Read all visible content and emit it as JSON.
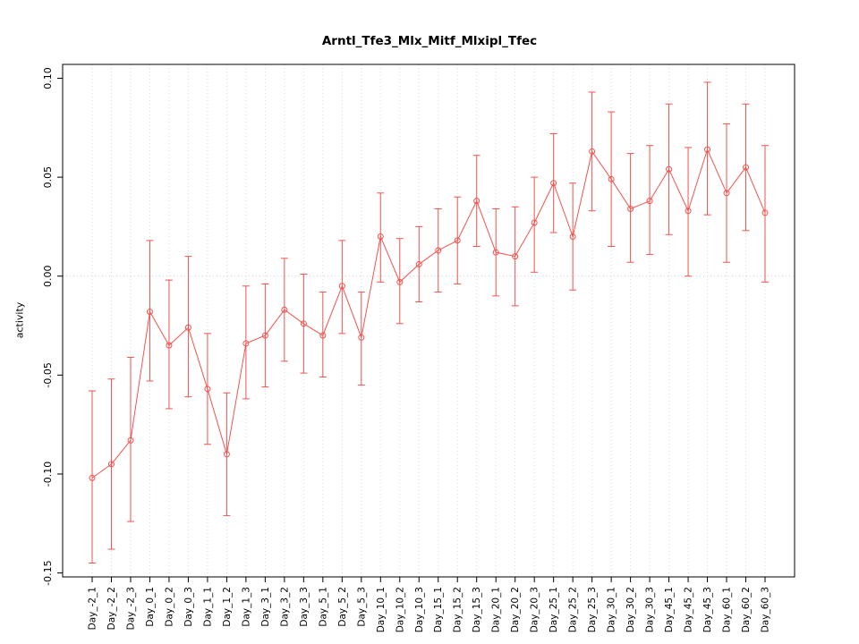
{
  "chart_data": {
    "type": "line",
    "title": "Arntl_Tfe3_Mlx_Mitf_Mlxipl_Tfec",
    "xlabel": "",
    "ylabel": "activity",
    "legend": "none",
    "grid": "dotted vertical gridlines at each category; dotted horizontal reference line at 0",
    "categories": [
      "Day_-2_1",
      "Day_-2_2",
      "Day_-2_3",
      "Day_0_1",
      "Day_0_2",
      "Day_0_3",
      "Day_1_1",
      "Day_1_2",
      "Day_1_3",
      "Day_3_1",
      "Day_3_2",
      "Day_3_3",
      "Day_5_1",
      "Day_5_2",
      "Day_5_3",
      "Day_10_1",
      "Day_10_2",
      "Day_10_3",
      "Day_15_1",
      "Day_15_2",
      "Day_15_3",
      "Day_20_1",
      "Day_20_2",
      "Day_20_3",
      "Day_25_1",
      "Day_25_2",
      "Day_25_3",
      "Day_30_1",
      "Day_30_2",
      "Day_30_3",
      "Day_45_1",
      "Day_45_2",
      "Day_45_3",
      "Day_60_1",
      "Day_60_2",
      "Day_60_3"
    ],
    "series": [
      {
        "name": "activity",
        "values": [
          -0.102,
          -0.095,
          -0.083,
          -0.018,
          -0.035,
          -0.026,
          -0.057,
          -0.09,
          -0.034,
          -0.03,
          -0.017,
          -0.024,
          -0.03,
          -0.005,
          -0.031,
          0.02,
          -0.003,
          0.006,
          0.013,
          0.018,
          0.038,
          0.012,
          0.01,
          0.027,
          0.047,
          0.02,
          0.063,
          0.049,
          0.034,
          0.038,
          0.054,
          0.033,
          0.064,
          0.042,
          0.055,
          0.032
        ],
        "ci_lower": [
          -0.145,
          -0.138,
          -0.124,
          -0.053,
          -0.067,
          -0.061,
          -0.085,
          -0.121,
          -0.062,
          -0.056,
          -0.043,
          -0.049,
          -0.051,
          -0.029,
          -0.055,
          -0.003,
          -0.024,
          -0.013,
          -0.008,
          -0.004,
          0.015,
          -0.01,
          -0.015,
          0.002,
          0.022,
          -0.007,
          0.033,
          0.015,
          0.007,
          0.011,
          0.021,
          0.0,
          0.031,
          0.007,
          0.023,
          -0.003
        ],
        "ci_upper": [
          -0.058,
          -0.052,
          -0.041,
          0.018,
          -0.002,
          0.01,
          -0.029,
          -0.059,
          -0.005,
          -0.004,
          0.009,
          0.001,
          -0.008,
          0.018,
          -0.008,
          0.042,
          0.019,
          0.025,
          0.034,
          0.04,
          0.061,
          0.034,
          0.035,
          0.05,
          0.072,
          0.047,
          0.093,
          0.083,
          0.062,
          0.066,
          0.087,
          0.065,
          0.098,
          0.077,
          0.087,
          0.066
        ]
      }
    ],
    "yticks": [
      -0.15,
      -0.1,
      -0.05,
      0.0,
      0.05,
      0.1
    ],
    "ytick_labels": [
      "-0.15",
      "-0.10",
      "-0.05",
      "0.00",
      "0.05",
      "0.10"
    ],
    "ylim": [
      -0.152,
      0.107
    ],
    "zero_line": true,
    "marker": "open-circle",
    "colors": {
      "series": "#f2534e",
      "grid": "#d9d9d9",
      "zero_line": "#c3cfe4",
      "axis": "#000000",
      "background": "#ffffff"
    }
  }
}
